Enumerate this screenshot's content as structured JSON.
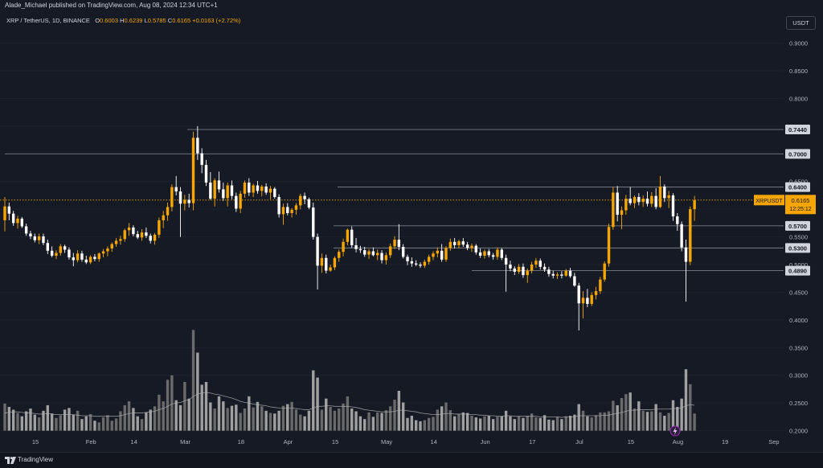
{
  "header": {
    "publisher": "Alade_Michael published on TradingView.com, Aug 08, 2024 12:34 UTC+1",
    "symbol": "XRP / TetherUS, 1D, BINANCE",
    "o_label": "O",
    "o_value": "0.6003",
    "h_label": "H",
    "h_value": "0.6239",
    "l_label": "L",
    "l_value": "0.5785",
    "c_label": "C",
    "c_value": "0.6165",
    "change": "+0.0163 (+2.72%)",
    "currency": "USDT"
  },
  "footer": {
    "brand": "TradingView"
  },
  "colors": {
    "background": "#161a25",
    "up": "#f7a600",
    "down": "#ffffff",
    "volume": "#9a9a9a",
    "grid": "#1e222d",
    "level_line": "#787b86",
    "label_bg": "#d1d4dc",
    "live_label": "#f7a600"
  },
  "chart_data": {
    "type": "candlestick",
    "symbol": "XRPUSDT",
    "timeframe": "1D",
    "exchange": "BINANCE",
    "ylim": [
      0.19,
      0.93
    ],
    "y_ticks": [
      "0.9000",
      "0.8500",
      "0.8000",
      "0.7500",
      "0.7000",
      "0.6500",
      "0.6000",
      "0.5500",
      "0.5000",
      "0.4500",
      "0.4000",
      "0.3500",
      "0.3000",
      "0.2500",
      "0.2000"
    ],
    "x_ticks": [
      "15",
      "Feb",
      "14",
      "Mar",
      "18",
      "Apr",
      "15",
      "May",
      "14",
      "Jun",
      "17",
      "Jul",
      "15",
      "Aug",
      "19",
      "Sep"
    ],
    "horizontal_levels": [
      "0.7440",
      "0.7000",
      "0.6400",
      "0.5700",
      "0.5300",
      "0.4890"
    ],
    "last_price_label": "XRPUSDT",
    "last_price": "0.6165",
    "countdown": "12:25:12",
    "candles": [
      [
        0.58,
        0.622,
        0.56,
        0.605
      ],
      [
        0.605,
        0.612,
        0.58,
        0.592
      ],
      [
        0.592,
        0.597,
        0.57,
        0.575
      ],
      [
        0.575,
        0.588,
        0.565,
        0.583
      ],
      [
        0.583,
        0.586,
        0.566,
        0.569
      ],
      [
        0.569,
        0.574,
        0.552,
        0.556
      ],
      [
        0.556,
        0.561,
        0.546,
        0.551
      ],
      [
        0.551,
        0.556,
        0.54,
        0.544
      ],
      [
        0.544,
        0.556,
        0.537,
        0.551
      ],
      [
        0.551,
        0.556,
        0.535,
        0.539
      ],
      [
        0.539,
        0.545,
        0.519,
        0.525
      ],
      [
        0.525,
        0.533,
        0.513,
        0.516
      ],
      [
        0.516,
        0.526,
        0.51,
        0.521
      ],
      [
        0.521,
        0.537,
        0.516,
        0.533
      ],
      [
        0.533,
        0.536,
        0.521,
        0.527
      ],
      [
        0.527,
        0.531,
        0.509,
        0.513
      ],
      [
        0.513,
        0.521,
        0.497,
        0.508
      ],
      [
        0.508,
        0.526,
        0.504,
        0.52
      ],
      [
        0.52,
        0.525,
        0.505,
        0.509
      ],
      [
        0.509,
        0.516,
        0.501,
        0.504
      ],
      [
        0.504,
        0.517,
        0.501,
        0.514
      ],
      [
        0.514,
        0.519,
        0.506,
        0.51
      ],
      [
        0.51,
        0.522,
        0.505,
        0.52
      ],
      [
        0.52,
        0.528,
        0.513,
        0.524
      ],
      [
        0.524,
        0.533,
        0.515,
        0.529
      ],
      [
        0.529,
        0.54,
        0.523,
        0.537
      ],
      [
        0.537,
        0.548,
        0.532,
        0.543
      ],
      [
        0.543,
        0.552,
        0.536,
        0.546
      ],
      [
        0.546,
        0.565,
        0.541,
        0.562
      ],
      [
        0.562,
        0.575,
        0.552,
        0.567
      ],
      [
        0.567,
        0.571,
        0.551,
        0.555
      ],
      [
        0.555,
        0.561,
        0.546,
        0.549
      ],
      [
        0.549,
        0.564,
        0.543,
        0.558
      ],
      [
        0.558,
        0.567,
        0.548,
        0.552
      ],
      [
        0.552,
        0.556,
        0.538,
        0.543
      ],
      [
        0.543,
        0.557,
        0.536,
        0.554
      ],
      [
        0.554,
        0.585,
        0.548,
        0.58
      ],
      [
        0.58,
        0.597,
        0.566,
        0.589
      ],
      [
        0.589,
        0.612,
        0.579,
        0.604
      ],
      [
        0.604,
        0.645,
        0.596,
        0.64
      ],
      [
        0.64,
        0.66,
        0.625,
        0.632
      ],
      [
        0.632,
        0.64,
        0.55,
        0.61
      ],
      [
        0.61,
        0.626,
        0.598,
        0.617
      ],
      [
        0.617,
        0.628,
        0.603,
        0.611
      ],
      [
        0.611,
        0.74,
        0.598,
        0.729
      ],
      [
        0.729,
        0.75,
        0.689,
        0.701
      ],
      [
        0.701,
        0.71,
        0.665,
        0.68
      ],
      [
        0.68,
        0.689,
        0.642,
        0.648
      ],
      [
        0.648,
        0.667,
        0.617,
        0.619
      ],
      [
        0.619,
        0.656,
        0.605,
        0.652
      ],
      [
        0.652,
        0.668,
        0.63,
        0.636
      ],
      [
        0.636,
        0.648,
        0.615,
        0.62
      ],
      [
        0.62,
        0.648,
        0.605,
        0.643
      ],
      [
        0.643,
        0.652,
        0.618,
        0.624
      ],
      [
        0.624,
        0.63,
        0.595,
        0.601
      ],
      [
        0.601,
        0.633,
        0.593,
        0.628
      ],
      [
        0.628,
        0.652,
        0.621,
        0.648
      ],
      [
        0.648,
        0.656,
        0.624,
        0.63
      ],
      [
        0.63,
        0.646,
        0.622,
        0.643
      ],
      [
        0.643,
        0.651,
        0.628,
        0.633
      ],
      [
        0.633,
        0.644,
        0.623,
        0.641
      ],
      [
        0.641,
        0.647,
        0.626,
        0.63
      ],
      [
        0.63,
        0.642,
        0.618,
        0.637
      ],
      [
        0.637,
        0.64,
        0.619,
        0.622
      ],
      [
        0.622,
        0.627,
        0.585,
        0.591
      ],
      [
        0.591,
        0.61,
        0.572,
        0.604
      ],
      [
        0.604,
        0.611,
        0.589,
        0.593
      ],
      [
        0.593,
        0.602,
        0.585,
        0.599
      ],
      [
        0.599,
        0.611,
        0.59,
        0.607
      ],
      [
        0.607,
        0.628,
        0.6,
        0.624
      ],
      [
        0.624,
        0.63,
        0.609,
        0.618
      ],
      [
        0.618,
        0.621,
        0.6,
        0.603
      ],
      [
        0.603,
        0.612,
        0.545,
        0.55
      ],
      [
        0.55,
        0.556,
        0.455,
        0.498
      ],
      [
        0.498,
        0.52,
        0.485,
        0.512
      ],
      [
        0.512,
        0.518,
        0.484,
        0.489
      ],
      [
        0.489,
        0.5,
        0.487,
        0.495
      ],
      [
        0.495,
        0.515,
        0.49,
        0.512
      ],
      [
        0.512,
        0.527,
        0.505,
        0.523
      ],
      [
        0.523,
        0.547,
        0.515,
        0.541
      ],
      [
        0.541,
        0.565,
        0.535,
        0.563
      ],
      [
        0.563,
        0.569,
        0.53,
        0.535
      ],
      [
        0.535,
        0.548,
        0.522,
        0.528
      ],
      [
        0.528,
        0.534,
        0.521,
        0.526
      ],
      [
        0.526,
        0.532,
        0.514,
        0.518
      ],
      [
        0.518,
        0.528,
        0.51,
        0.524
      ],
      [
        0.524,
        0.531,
        0.515,
        0.517
      ],
      [
        0.517,
        0.527,
        0.508,
        0.521
      ],
      [
        0.521,
        0.526,
        0.502,
        0.508
      ],
      [
        0.508,
        0.522,
        0.5,
        0.517
      ],
      [
        0.517,
        0.538,
        0.512,
        0.533
      ],
      [
        0.533,
        0.551,
        0.528,
        0.545
      ],
      [
        0.545,
        0.573,
        0.526,
        0.532
      ],
      [
        0.532,
        0.537,
        0.511,
        0.514
      ],
      [
        0.514,
        0.518,
        0.499,
        0.506
      ],
      [
        0.506,
        0.513,
        0.496,
        0.502
      ],
      [
        0.502,
        0.508,
        0.497,
        0.5
      ],
      [
        0.5,
        0.504,
        0.494,
        0.498
      ],
      [
        0.498,
        0.509,
        0.494,
        0.505
      ],
      [
        0.505,
        0.518,
        0.5,
        0.514
      ],
      [
        0.514,
        0.524,
        0.508,
        0.52
      ],
      [
        0.52,
        0.531,
        0.513,
        0.525
      ],
      [
        0.525,
        0.537,
        0.505,
        0.509
      ],
      [
        0.509,
        0.533,
        0.505,
        0.53
      ],
      [
        0.53,
        0.547,
        0.525,
        0.541
      ],
      [
        0.541,
        0.548,
        0.529,
        0.535
      ],
      [
        0.535,
        0.545,
        0.529,
        0.542
      ],
      [
        0.542,
        0.548,
        0.532,
        0.536
      ],
      [
        0.536,
        0.541,
        0.526,
        0.53
      ],
      [
        0.53,
        0.538,
        0.523,
        0.534
      ],
      [
        0.534,
        0.537,
        0.518,
        0.522
      ],
      [
        0.522,
        0.529,
        0.512,
        0.516
      ],
      [
        0.516,
        0.527,
        0.511,
        0.524
      ],
      [
        0.524,
        0.528,
        0.513,
        0.517
      ],
      [
        0.517,
        0.521,
        0.509,
        0.514
      ],
      [
        0.514,
        0.531,
        0.509,
        0.527
      ],
      [
        0.527,
        0.53,
        0.508,
        0.512
      ],
      [
        0.512,
        0.518,
        0.451,
        0.5
      ],
      [
        0.5,
        0.507,
        0.488,
        0.493
      ],
      [
        0.493,
        0.497,
        0.481,
        0.487
      ],
      [
        0.487,
        0.501,
        0.483,
        0.496
      ],
      [
        0.496,
        0.502,
        0.476,
        0.481
      ],
      [
        0.481,
        0.493,
        0.467,
        0.489
      ],
      [
        0.489,
        0.505,
        0.484,
        0.5
      ],
      [
        0.5,
        0.512,
        0.494,
        0.507
      ],
      [
        0.507,
        0.511,
        0.491,
        0.496
      ],
      [
        0.496,
        0.502,
        0.487,
        0.491
      ],
      [
        0.491,
        0.496,
        0.478,
        0.483
      ],
      [
        0.483,
        0.489,
        0.475,
        0.48
      ],
      [
        0.48,
        0.486,
        0.474,
        0.482
      ],
      [
        0.482,
        0.488,
        0.475,
        0.48
      ],
      [
        0.48,
        0.492,
        0.478,
        0.489
      ],
      [
        0.489,
        0.494,
        0.476,
        0.479
      ],
      [
        0.479,
        0.485,
        0.46,
        0.462
      ],
      [
        0.462,
        0.467,
        0.381,
        0.43
      ],
      [
        0.43,
        0.452,
        0.403,
        0.44
      ],
      [
        0.44,
        0.456,
        0.423,
        0.429
      ],
      [
        0.429,
        0.45,
        0.425,
        0.445
      ],
      [
        0.445,
        0.46,
        0.437,
        0.452
      ],
      [
        0.452,
        0.478,
        0.447,
        0.473
      ],
      [
        0.473,
        0.506,
        0.469,
        0.502
      ],
      [
        0.502,
        0.574,
        0.496,
        0.568
      ],
      [
        0.568,
        0.64,
        0.563,
        0.63
      ],
      [
        0.63,
        0.642,
        0.578,
        0.59
      ],
      [
        0.59,
        0.605,
        0.564,
        0.598
      ],
      [
        0.598,
        0.626,
        0.59,
        0.619
      ],
      [
        0.619,
        0.64,
        0.607,
        0.611
      ],
      [
        0.611,
        0.625,
        0.602,
        0.622
      ],
      [
        0.622,
        0.629,
        0.607,
        0.613
      ],
      [
        0.613,
        0.625,
        0.604,
        0.619
      ],
      [
        0.619,
        0.632,
        0.605,
        0.61
      ],
      [
        0.61,
        0.631,
        0.604,
        0.624
      ],
      [
        0.624,
        0.638,
        0.6,
        0.604
      ],
      [
        0.604,
        0.66,
        0.602,
        0.641
      ],
      [
        0.641,
        0.645,
        0.613,
        0.62
      ],
      [
        0.62,
        0.633,
        0.602,
        0.625
      ],
      [
        0.625,
        0.629,
        0.579,
        0.587
      ],
      [
        0.587,
        0.593,
        0.561,
        0.573
      ],
      [
        0.573,
        0.578,
        0.524,
        0.531
      ],
      [
        0.531,
        0.545,
        0.433,
        0.505
      ],
      [
        0.505,
        0.605,
        0.499,
        0.6
      ],
      [
        0.6,
        0.624,
        0.579,
        0.616
      ]
    ],
    "volumes": [
      0.249,
      0.243,
      0.238,
      0.232,
      0.226,
      0.235,
      0.24,
      0.229,
      0.224,
      0.236,
      0.246,
      0.231,
      0.223,
      0.228,
      0.238,
      0.241,
      0.229,
      0.236,
      0.221,
      0.226,
      0.23,
      0.218,
      0.215,
      0.224,
      0.228,
      0.218,
      0.222,
      0.235,
      0.246,
      0.253,
      0.241,
      0.226,
      0.221,
      0.233,
      0.238,
      0.244,
      0.265,
      0.253,
      0.292,
      0.3,
      0.255,
      0.246,
      0.288,
      0.258,
      0.382,
      0.341,
      0.283,
      0.288,
      0.251,
      0.24,
      0.262,
      0.253,
      0.241,
      0.245,
      0.247,
      0.232,
      0.24,
      0.262,
      0.242,
      0.252,
      0.244,
      0.236,
      0.232,
      0.231,
      0.236,
      0.245,
      0.248,
      0.252,
      0.238,
      0.229,
      0.226,
      0.236,
      0.309,
      0.296,
      0.238,
      0.258,
      0.243,
      0.236,
      0.24,
      0.249,
      0.262,
      0.24,
      0.235,
      0.226,
      0.221,
      0.233,
      0.225,
      0.233,
      0.232,
      0.237,
      0.244,
      0.256,
      0.272,
      0.251,
      0.223,
      0.227,
      0.219,
      0.217,
      0.219,
      0.223,
      0.225,
      0.238,
      0.244,
      0.251,
      0.237,
      0.226,
      0.23,
      0.233,
      0.232,
      0.227,
      0.224,
      0.222,
      0.226,
      0.227,
      0.221,
      0.225,
      0.226,
      0.236,
      0.226,
      0.221,
      0.226,
      0.223,
      0.227,
      0.231,
      0.224,
      0.223,
      0.228,
      0.22,
      0.219,
      0.225,
      0.221,
      0.226,
      0.227,
      0.229,
      0.248,
      0.236,
      0.226,
      0.224,
      0.228,
      0.233,
      0.233,
      0.235,
      0.254,
      0.246,
      0.259,
      0.266,
      0.269,
      0.24,
      0.253,
      0.236,
      0.234,
      0.235,
      0.248,
      0.233,
      0.227,
      0.232,
      0.255,
      0.243,
      0.258,
      0.311,
      0.284,
      0.231
    ],
    "volume_ma": [
      0.232,
      0.233,
      0.234,
      0.234,
      0.233,
      0.232,
      0.232,
      0.231,
      0.23,
      0.23,
      0.231,
      0.23,
      0.229,
      0.229,
      0.229,
      0.229,
      0.229,
      0.228,
      0.227,
      0.227,
      0.227,
      0.226,
      0.226,
      0.226,
      0.226,
      0.226,
      0.226,
      0.227,
      0.229,
      0.231,
      0.232,
      0.232,
      0.232,
      0.233,
      0.234,
      0.235,
      0.238,
      0.24,
      0.244,
      0.248,
      0.25,
      0.251,
      0.254,
      0.256,
      0.262,
      0.266,
      0.268,
      0.269,
      0.268,
      0.266,
      0.265,
      0.263,
      0.261,
      0.259,
      0.256,
      0.253,
      0.251,
      0.25,
      0.248,
      0.247,
      0.246,
      0.245,
      0.243,
      0.242,
      0.241,
      0.241,
      0.241,
      0.241,
      0.24,
      0.239,
      0.238,
      0.238,
      0.241,
      0.244,
      0.244,
      0.245,
      0.245,
      0.244,
      0.244,
      0.244,
      0.244,
      0.243,
      0.242,
      0.24,
      0.238,
      0.237,
      0.236,
      0.235,
      0.234,
      0.234,
      0.234,
      0.235,
      0.237,
      0.237,
      0.236,
      0.235,
      0.234,
      0.232,
      0.231,
      0.23,
      0.229,
      0.229,
      0.23,
      0.231,
      0.231,
      0.23,
      0.23,
      0.23,
      0.23,
      0.229,
      0.229,
      0.228,
      0.228,
      0.227,
      0.227,
      0.226,
      0.226,
      0.227,
      0.227,
      0.226,
      0.226,
      0.226,
      0.226,
      0.226,
      0.226,
      0.225,
      0.225,
      0.225,
      0.225,
      0.225,
      0.224,
      0.225,
      0.225,
      0.225,
      0.227,
      0.227,
      0.227,
      0.227,
      0.227,
      0.227,
      0.228,
      0.228,
      0.23,
      0.231,
      0.233,
      0.235,
      0.237,
      0.237,
      0.238,
      0.238,
      0.238,
      0.238,
      0.239,
      0.239,
      0.239,
      0.239,
      0.24,
      0.24,
      0.241,
      0.245,
      0.247,
      0.246
    ]
  }
}
